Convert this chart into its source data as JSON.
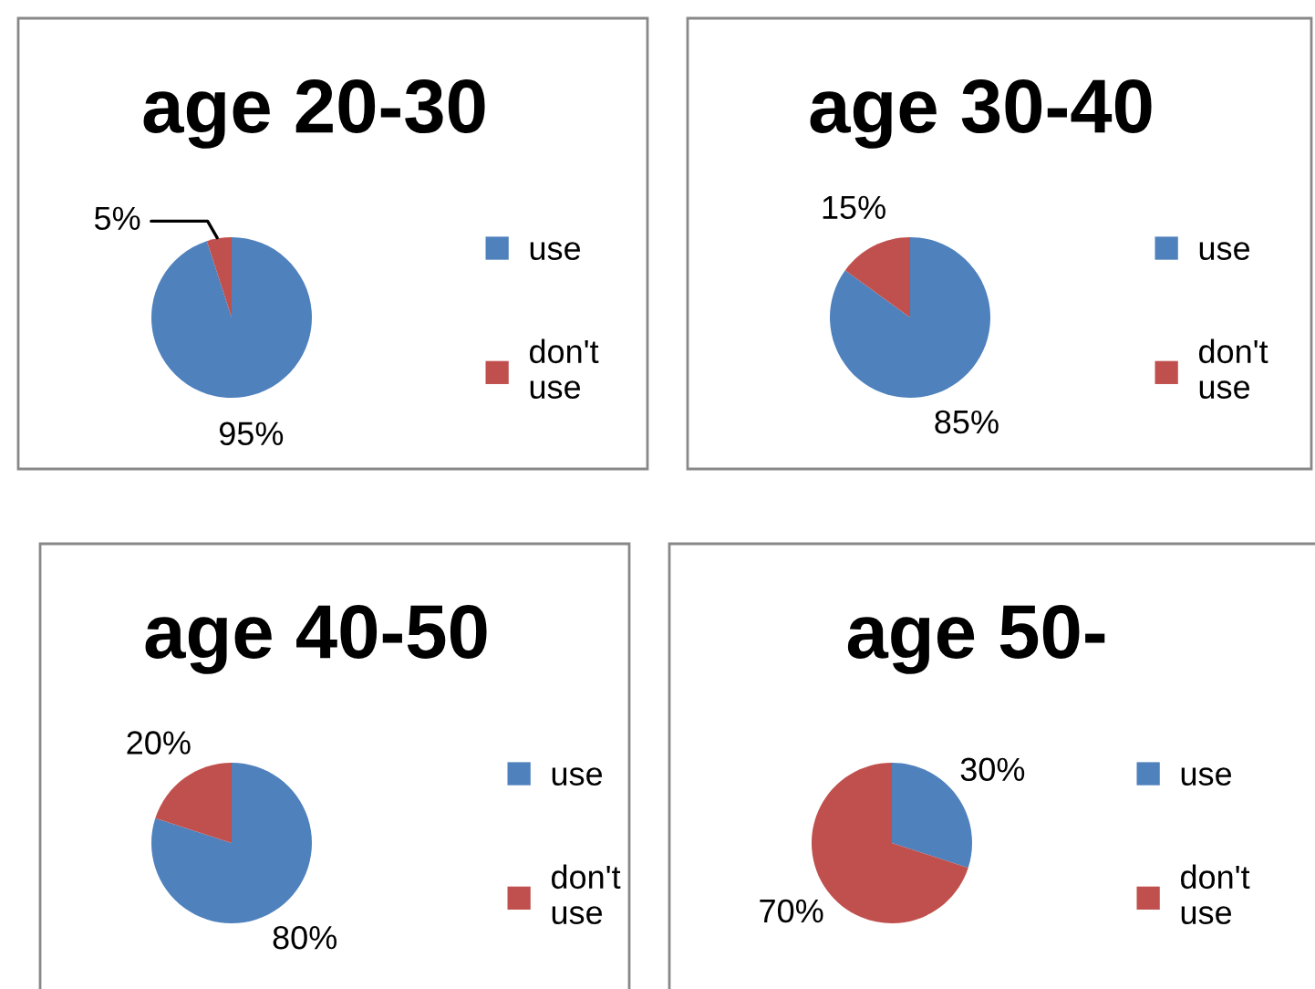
{
  "chart_data": [
    {
      "type": "pie",
      "title": "age 20-30",
      "categories": [
        "use",
        "don't use"
      ],
      "values": [
        95,
        5
      ],
      "value_labels": [
        "95%",
        "5%"
      ],
      "colors": [
        "#4f81bd",
        "#c0504d"
      ],
      "legend": "right"
    },
    {
      "type": "pie",
      "title": "age 30-40",
      "categories": [
        "use",
        "don't use"
      ],
      "values": [
        85,
        15
      ],
      "value_labels": [
        "85%",
        "15%"
      ],
      "colors": [
        "#4f81bd",
        "#c0504d"
      ],
      "legend": "right"
    },
    {
      "type": "pie",
      "title": "age 40-50",
      "categories": [
        "use",
        "don't use"
      ],
      "values": [
        80,
        20
      ],
      "value_labels": [
        "80%",
        "20%"
      ],
      "colors": [
        "#4f81bd",
        "#c0504d"
      ],
      "legend": "right"
    },
    {
      "type": "pie",
      "title": "age 50-",
      "categories": [
        "use",
        "don't use"
      ],
      "values": [
        30,
        70
      ],
      "value_labels": [
        "30%",
        "70%"
      ],
      "colors": [
        "#4f81bd",
        "#c0504d"
      ],
      "legend": "right"
    }
  ]
}
